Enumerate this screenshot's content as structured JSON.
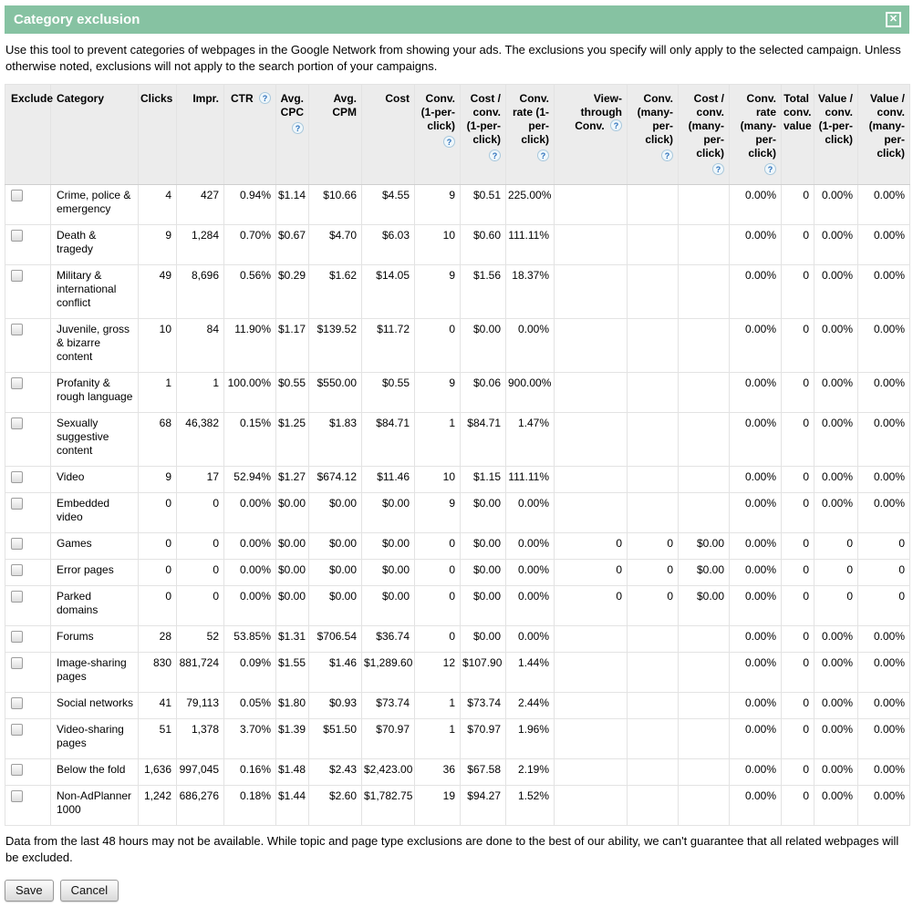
{
  "dialog": {
    "title": "Category exclusion",
    "close_glyph": "✕",
    "intro": "Use this tool to prevent categories of webpages in the Google Network from showing your ads. The exclusions you specify will only apply to the selected campaign. Unless otherwise noted, exclusions will not apply to the search portion of your campaigns.",
    "footer_note": "Data from the last 48 hours may not be available. While topic and page type exclusions are done to the best of our ability, we can't guarantee that all related webpages will be excluded.",
    "save_label": "Save",
    "cancel_label": "Cancel"
  },
  "colors": {
    "titlebar_green": "#86c2a2",
    "header_row_gray": "#ececec",
    "help_icon_blue": "#2a6fbb"
  },
  "help_icon_glyph": "?",
  "table": {
    "columns": [
      {
        "label": "Exclude",
        "align": "left",
        "help": "none"
      },
      {
        "label": "Category",
        "align": "left",
        "help": "none"
      },
      {
        "label": "Clicks",
        "align": "right",
        "help": "none"
      },
      {
        "label": "Impr.",
        "align": "right",
        "help": "none"
      },
      {
        "label": "CTR",
        "align": "right",
        "help": "inline"
      },
      {
        "label": "Avg. CPC",
        "align": "right",
        "help": "below"
      },
      {
        "label": "Avg. CPM",
        "align": "right",
        "help": "none"
      },
      {
        "label": "Cost",
        "align": "right",
        "help": "none"
      },
      {
        "label": "Conv. (1-per-click)",
        "align": "right",
        "help": "below"
      },
      {
        "label": "Cost / conv. (1-per-click)",
        "align": "right",
        "help": "below"
      },
      {
        "label": "Conv. rate (1-per-click)",
        "align": "right",
        "help": "below"
      },
      {
        "label": "View-through Conv.",
        "align": "right",
        "help": "inline"
      },
      {
        "label": "Conv. (many-per-click)",
        "align": "right",
        "help": "below"
      },
      {
        "label": "Cost / conv. (many-per-click)",
        "align": "right",
        "help": "below"
      },
      {
        "label": "Conv. rate (many-per-click)",
        "align": "right",
        "help": "below"
      },
      {
        "label": "Total conv. value",
        "align": "right",
        "help": "none"
      },
      {
        "label": "Value / conv. (1-per-click)",
        "align": "right",
        "help": "none"
      },
      {
        "label": "Value / conv. (many-per-click)",
        "align": "right",
        "help": "none"
      }
    ],
    "rows": [
      {
        "category": "Crime, police & emergency",
        "cells": [
          "4",
          "427",
          "0.94%",
          "$1.14",
          "$10.66",
          "$4.55",
          "9",
          "$0.51",
          "225.00%",
          "",
          "",
          "",
          "0.00%",
          "0",
          "0.00%",
          "0.00%"
        ]
      },
      {
        "category": "Death & tragedy",
        "cells": [
          "9",
          "1,284",
          "0.70%",
          "$0.67",
          "$4.70",
          "$6.03",
          "10",
          "$0.60",
          "111.11%",
          "",
          "",
          "",
          "0.00%",
          "0",
          "0.00%",
          "0.00%"
        ]
      },
      {
        "category": "Military & international conflict",
        "cells": [
          "49",
          "8,696",
          "0.56%",
          "$0.29",
          "$1.62",
          "$14.05",
          "9",
          "$1.56",
          "18.37%",
          "",
          "",
          "",
          "0.00%",
          "0",
          "0.00%",
          "0.00%"
        ]
      },
      {
        "category": "Juvenile, gross & bizarre content",
        "cells": [
          "10",
          "84",
          "11.90%",
          "$1.17",
          "$139.52",
          "$11.72",
          "0",
          "$0.00",
          "0.00%",
          "",
          "",
          "",
          "0.00%",
          "0",
          "0.00%",
          "0.00%"
        ]
      },
      {
        "category": "Profanity & rough language",
        "cells": [
          "1",
          "1",
          "100.00%",
          "$0.55",
          "$550.00",
          "$0.55",
          "9",
          "$0.06",
          "900.00%",
          "",
          "",
          "",
          "0.00%",
          "0",
          "0.00%",
          "0.00%"
        ]
      },
      {
        "category": "Sexually suggestive content",
        "cells": [
          "68",
          "46,382",
          "0.15%",
          "$1.25",
          "$1.83",
          "$84.71",
          "1",
          "$84.71",
          "1.47%",
          "",
          "",
          "",
          "0.00%",
          "0",
          "0.00%",
          "0.00%"
        ]
      },
      {
        "category": "Video",
        "cells": [
          "9",
          "17",
          "52.94%",
          "$1.27",
          "$674.12",
          "$11.46",
          "10",
          "$1.15",
          "111.11%",
          "",
          "",
          "",
          "0.00%",
          "0",
          "0.00%",
          "0.00%"
        ]
      },
      {
        "category": "Embedded video",
        "cells": [
          "0",
          "0",
          "0.00%",
          "$0.00",
          "$0.00",
          "$0.00",
          "9",
          "$0.00",
          "0.00%",
          "",
          "",
          "",
          "0.00%",
          "0",
          "0.00%",
          "0.00%"
        ]
      },
      {
        "category": "Games",
        "cells": [
          "0",
          "0",
          "0.00%",
          "$0.00",
          "$0.00",
          "$0.00",
          "0",
          "$0.00",
          "0.00%",
          "0",
          "0",
          "$0.00",
          "0.00%",
          "0",
          "0",
          "0"
        ]
      },
      {
        "category": "Error pages",
        "cells": [
          "0",
          "0",
          "0.00%",
          "$0.00",
          "$0.00",
          "$0.00",
          "0",
          "$0.00",
          "0.00%",
          "0",
          "0",
          "$0.00",
          "0.00%",
          "0",
          "0",
          "0"
        ]
      },
      {
        "category": "Parked domains",
        "cells": [
          "0",
          "0",
          "0.00%",
          "$0.00",
          "$0.00",
          "$0.00",
          "0",
          "$0.00",
          "0.00%",
          "0",
          "0",
          "$0.00",
          "0.00%",
          "0",
          "0",
          "0"
        ]
      },
      {
        "category": "Forums",
        "cells": [
          "28",
          "52",
          "53.85%",
          "$1.31",
          "$706.54",
          "$36.74",
          "0",
          "$0.00",
          "0.00%",
          "",
          "",
          "",
          "0.00%",
          "0",
          "0.00%",
          "0.00%"
        ]
      },
      {
        "category": "Image-sharing pages",
        "cells": [
          "830",
          "881,724",
          "0.09%",
          "$1.55",
          "$1.46",
          "$1,289.60",
          "12",
          "$107.90",
          "1.44%",
          "",
          "",
          "",
          "0.00%",
          "0",
          "0.00%",
          "0.00%"
        ]
      },
      {
        "category": "Social networks",
        "cells": [
          "41",
          "79,113",
          "0.05%",
          "$1.80",
          "$0.93",
          "$73.74",
          "1",
          "$73.74",
          "2.44%",
          "",
          "",
          "",
          "0.00%",
          "0",
          "0.00%",
          "0.00%"
        ]
      },
      {
        "category": "Video-sharing pages",
        "cells": [
          "51",
          "1,378",
          "3.70%",
          "$1.39",
          "$51.50",
          "$70.97",
          "1",
          "$70.97",
          "1.96%",
          "",
          "",
          "",
          "0.00%",
          "0",
          "0.00%",
          "0.00%"
        ]
      },
      {
        "category": "Below the fold",
        "cells": [
          "1,636",
          "997,045",
          "0.16%",
          "$1.48",
          "$2.43",
          "$2,423.00",
          "36",
          "$67.58",
          "2.19%",
          "",
          "",
          "",
          "0.00%",
          "0",
          "0.00%",
          "0.00%"
        ]
      },
      {
        "category": "Non-AdPlanner 1000",
        "cells": [
          "1,242",
          "686,276",
          "0.18%",
          "$1.44",
          "$2.60",
          "$1,782.75",
          "19",
          "$94.27",
          "1.52%",
          "",
          "",
          "",
          "0.00%",
          "0",
          "0.00%",
          "0.00%"
        ]
      }
    ]
  }
}
